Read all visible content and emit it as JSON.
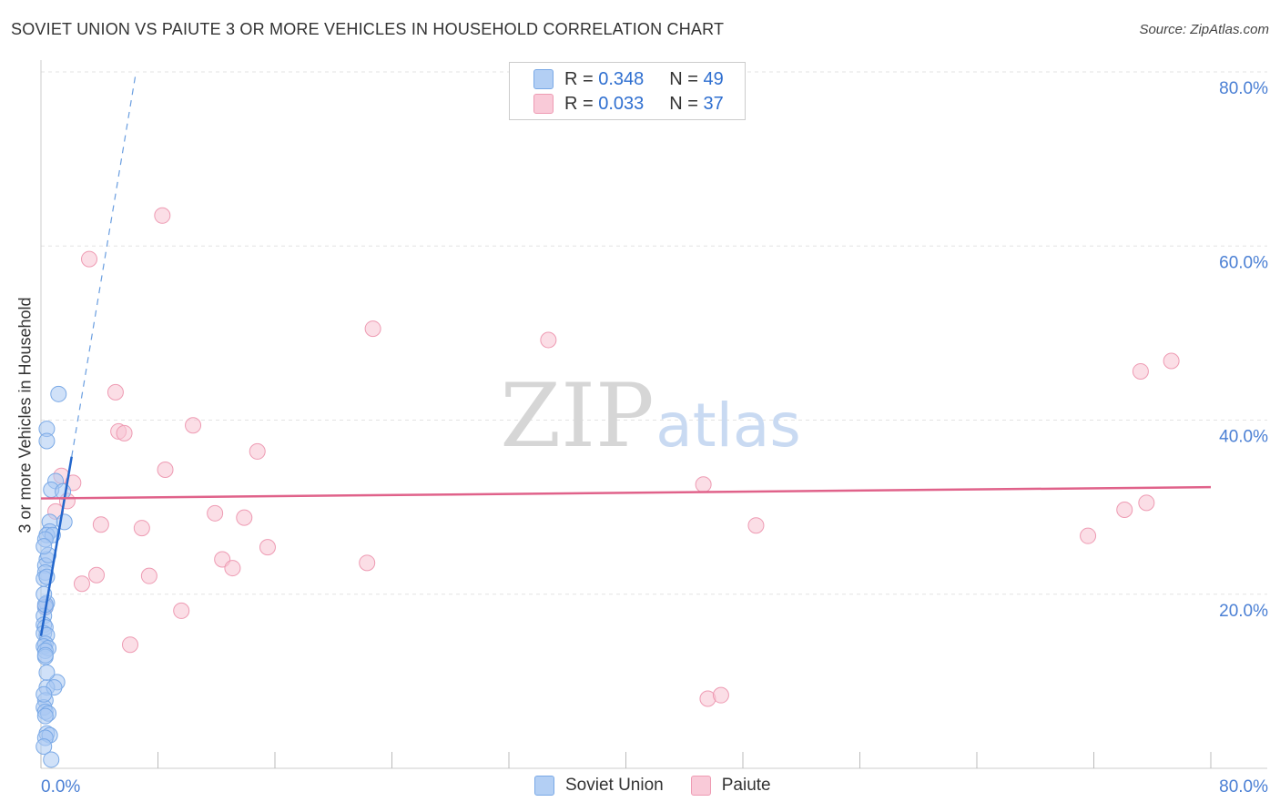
{
  "header": {
    "title": "SOVIET UNION VS PAIUTE 3 OR MORE VEHICLES IN HOUSEHOLD CORRELATION CHART",
    "source": "Source: ZipAtlas.com"
  },
  "watermark": {
    "zip": "ZIP",
    "atlas": "atlas"
  },
  "legend_top": [
    {
      "r_label": "R = ",
      "r_value": "0.348",
      "n_label": "N = ",
      "n_value": "49"
    },
    {
      "r_label": "R = ",
      "r_value": "0.033",
      "n_label": "N = ",
      "n_value": "37"
    }
  ],
  "legend_bottom": [
    {
      "label": "Soviet Union"
    },
    {
      "label": "Paiute"
    }
  ],
  "colors": {
    "blue_fill": "#a9c8f2",
    "blue_stroke": "#7aa9e6",
    "blue_line": "#2266cc",
    "pink_fill": "#f7c3d2",
    "pink_stroke": "#ee9bb3",
    "pink_line": "#e0628a",
    "tick_label": "#4a7fd4"
  },
  "chart_data": {
    "type": "scatter",
    "title": "SOVIET UNION VS PAIUTE 3 OR MORE VEHICLES IN HOUSEHOLD CORRELATION CHART",
    "xlabel": "",
    "ylabel": "3 or more Vehicles in Household",
    "xlim": [
      0,
      80
    ],
    "ylim": [
      0,
      80
    ],
    "x_tick_labels": [
      {
        "value": 0,
        "label": "0.0%"
      },
      {
        "value": 80,
        "label": "80.0%"
      }
    ],
    "y_tick_labels": [
      {
        "value": 20,
        "label": "20.0%"
      },
      {
        "value": 40,
        "label": "40.0%"
      },
      {
        "value": 60,
        "label": "60.0%"
      },
      {
        "value": 80,
        "label": "80.0%"
      }
    ],
    "grid": true,
    "legend_placement": "top-center",
    "series": [
      {
        "name": "Soviet Union",
        "r": 0.348,
        "n": 49,
        "trend": {
          "x": [
            0,
            2.1
          ],
          "y": [
            15.2,
            35.8
          ],
          "dashed_extension": {
            "x": [
              2.1,
              6.5
            ],
            "y": [
              35.8,
              80.0
            ]
          }
        },
        "points": [
          [
            1.2,
            43.0
          ],
          [
            0.4,
            39.0
          ],
          [
            0.4,
            37.6
          ],
          [
            1.0,
            33.0
          ],
          [
            0.7,
            32.0
          ],
          [
            1.5,
            31.8
          ],
          [
            0.6,
            28.3
          ],
          [
            1.6,
            28.3
          ],
          [
            0.6,
            27.2
          ],
          [
            0.4,
            26.8
          ],
          [
            0.8,
            26.8
          ],
          [
            0.3,
            26.3
          ],
          [
            0.4,
            24.0
          ],
          [
            0.3,
            23.3
          ],
          [
            0.3,
            22.5
          ],
          [
            0.2,
            21.8
          ],
          [
            0.4,
            19.0
          ],
          [
            0.3,
            18.5
          ],
          [
            0.2,
            17.5
          ],
          [
            0.2,
            16.5
          ],
          [
            0.3,
            16.2
          ],
          [
            0.2,
            15.5
          ],
          [
            0.4,
            15.3
          ],
          [
            0.3,
            14.3
          ],
          [
            0.2,
            14.0
          ],
          [
            0.5,
            13.8
          ],
          [
            0.3,
            13.5
          ],
          [
            0.3,
            12.8
          ],
          [
            1.1,
            9.9
          ],
          [
            0.4,
            9.3
          ],
          [
            0.9,
            9.3
          ],
          [
            0.3,
            7.8
          ],
          [
            0.2,
            7.0
          ],
          [
            0.3,
            6.5
          ],
          [
            0.5,
            6.3
          ],
          [
            0.3,
            6.0
          ],
          [
            0.4,
            4.0
          ],
          [
            0.6,
            3.8
          ],
          [
            0.3,
            3.5
          ],
          [
            0.2,
            2.5
          ],
          [
            0.7,
            1.0
          ],
          [
            0.3,
            18.8
          ],
          [
            0.2,
            20.0
          ],
          [
            0.4,
            22.0
          ],
          [
            0.5,
            24.5
          ],
          [
            0.2,
            25.5
          ],
          [
            0.3,
            13.0
          ],
          [
            0.4,
            11.0
          ],
          [
            0.2,
            8.5
          ]
        ]
      },
      {
        "name": "Paiute",
        "r": 0.033,
        "n": 37,
        "trend": {
          "x": [
            0,
            80
          ],
          "y": [
            31.0,
            32.3
          ]
        },
        "points": [
          [
            8.3,
            63.5
          ],
          [
            3.3,
            58.5
          ],
          [
            22.7,
            50.5
          ],
          [
            34.7,
            49.2
          ],
          [
            77.3,
            46.8
          ],
          [
            75.2,
            45.6
          ],
          [
            5.1,
            43.2
          ],
          [
            10.4,
            39.4
          ],
          [
            5.3,
            38.7
          ],
          [
            5.7,
            38.5
          ],
          [
            14.8,
            36.4
          ],
          [
            8.5,
            34.3
          ],
          [
            1.4,
            33.6
          ],
          [
            2.2,
            32.8
          ],
          [
            45.3,
            32.6
          ],
          [
            1.8,
            30.7
          ],
          [
            75.6,
            30.5
          ],
          [
            74.1,
            29.7
          ],
          [
            1.0,
            29.5
          ],
          [
            11.9,
            29.3
          ],
          [
            13.9,
            28.8
          ],
          [
            4.1,
            28.0
          ],
          [
            6.9,
            27.6
          ],
          [
            48.9,
            27.9
          ],
          [
            71.6,
            26.7
          ],
          [
            15.5,
            25.4
          ],
          [
            12.4,
            24.0
          ],
          [
            13.1,
            23.0
          ],
          [
            22.3,
            23.6
          ],
          [
            3.8,
            22.2
          ],
          [
            7.4,
            22.1
          ],
          [
            2.8,
            21.2
          ],
          [
            9.6,
            18.1
          ],
          [
            6.1,
            14.2
          ],
          [
            0.3,
            18.6
          ],
          [
            45.6,
            8.0
          ],
          [
            46.5,
            8.4
          ]
        ]
      }
    ]
  }
}
